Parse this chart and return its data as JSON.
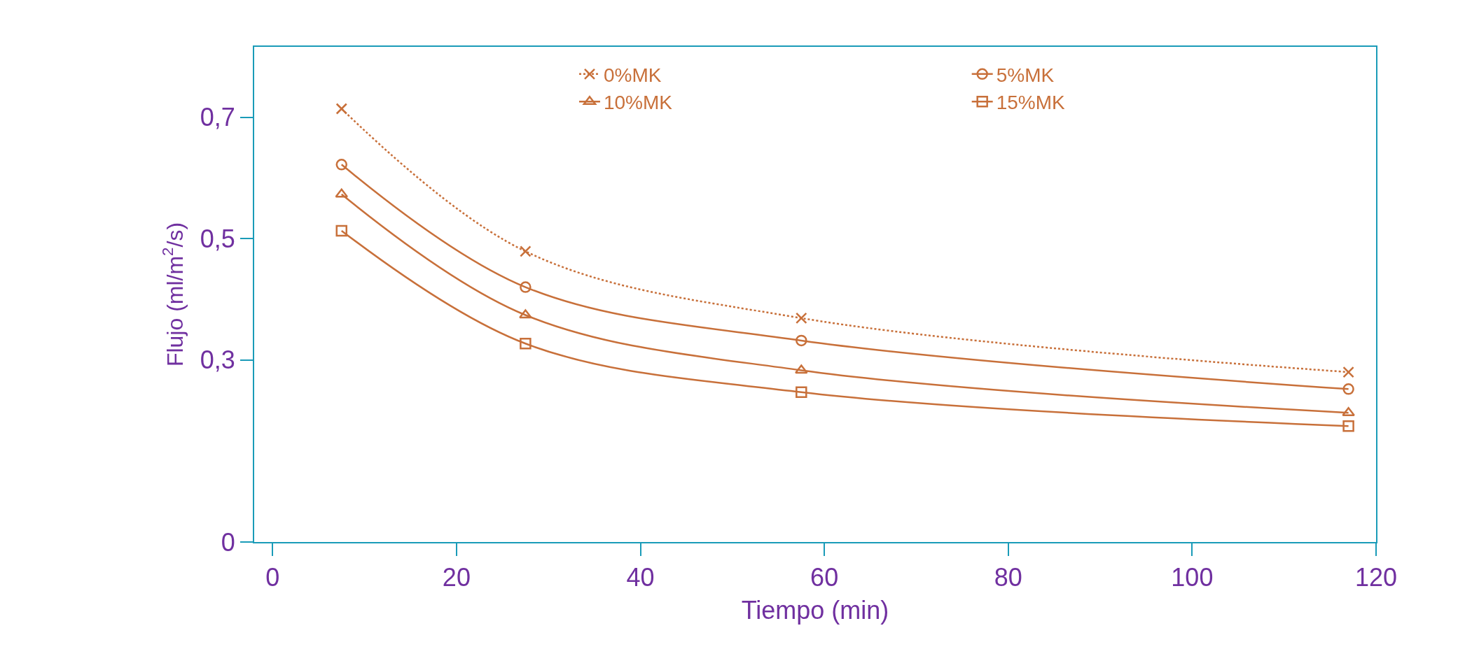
{
  "chart_data": {
    "type": "line",
    "xlabel": "Tiempo (min)",
    "ylabel": "Flujo (ml/m$^{2}$/s)",
    "x": [
      7.5,
      27.5,
      57.5,
      117
    ],
    "series": [
      {
        "name": "0%MK",
        "color": "#c8703a",
        "values": [
          0.714,
          0.479,
          0.369,
          0.28
        ],
        "marker": "cross",
        "line_style": "dotted"
      },
      {
        "name": "5%MK",
        "color": "#c8703a",
        "values": [
          0.622,
          0.42,
          0.332,
          0.252
        ],
        "marker": "circle",
        "line_style": "solid"
      },
      {
        "name": "10%MK",
        "color": "#c8703a",
        "values": [
          0.573,
          0.374,
          0.283,
          0.213
        ],
        "marker": "triangle",
        "line_style": "solid"
      },
      {
        "name": "15%MK",
        "color": "#c8703a",
        "values": [
          0.513,
          0.327,
          0.247,
          0.191
        ],
        "marker": "square",
        "line_style": "solid"
      }
    ],
    "xlim": [
      -2,
      120
    ],
    "xticks": [
      0,
      20,
      40,
      60,
      80,
      100,
      120
    ],
    "ylim": [
      0,
      0.816
    ],
    "yticks": [
      0,
      {
        "value": 0.3,
        "label": "0,3"
      },
      {
        "value": 0.5,
        "label": "0,5"
      },
      {
        "value": 0.7,
        "label": "0,7"
      }
    ],
    "legend": "top right"
  }
}
